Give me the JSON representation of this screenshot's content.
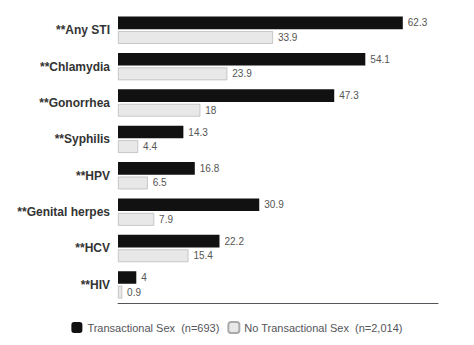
{
  "chart_data": {
    "type": "bar",
    "orientation": "horizontal",
    "categories": [
      "**Any STI",
      "**Chlamydia",
      "**Gonorrhea",
      "**Syphilis",
      "**HPV",
      "**Genital herpes",
      "**HCV",
      "**HIV"
    ],
    "series": [
      {
        "name": "Transactional Sex  (n=693)",
        "color": "#111111",
        "values": [
          62.3,
          54.1,
          47.3,
          14.3,
          16.8,
          30.9,
          22.2,
          4.0
        ]
      },
      {
        "name": "No Transactional Sex  (n=2,014)",
        "color": "#e8e8e8",
        "values": [
          33.9,
          23.9,
          18.0,
          4.4,
          6.5,
          7.9,
          15.4,
          0.9
        ]
      }
    ],
    "xlim": [
      0,
      70
    ],
    "xticks": [],
    "tick_labels": "y",
    "data_labels": true,
    "grid": false,
    "legend": "bottom"
  }
}
